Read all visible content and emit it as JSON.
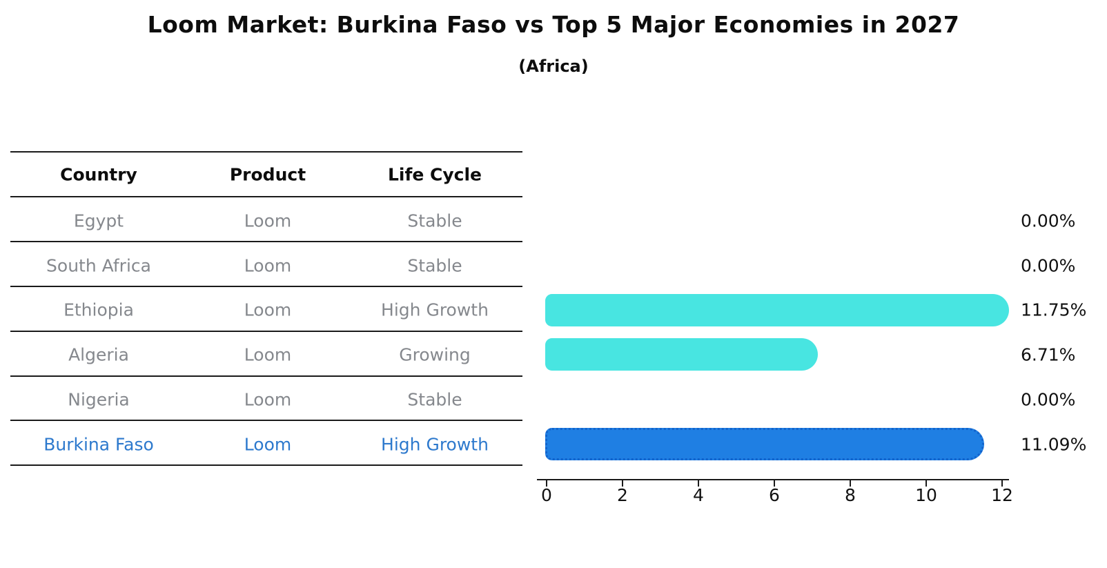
{
  "title": "Loom Market: Burkina Faso vs Top 5 Major Economies in 2027",
  "subtitle": "(Africa)",
  "table": {
    "headers": [
      "Country",
      "Product",
      "Life Cycle"
    ],
    "rows": [
      {
        "country": "Egypt",
        "product": "Loom",
        "life_cycle": "Stable",
        "value_label": "0.00%",
        "highlight": false
      },
      {
        "country": "South Africa",
        "product": "Loom",
        "life_cycle": "Stable",
        "value_label": "0.00%",
        "highlight": false
      },
      {
        "country": "Ethiopia",
        "product": "Loom",
        "life_cycle": "High Growth",
        "value_label": "11.75%",
        "highlight": false
      },
      {
        "country": "Algeria",
        "product": "Loom",
        "life_cycle": "Growing",
        "value_label": "6.71%",
        "highlight": false
      },
      {
        "country": "Nigeria",
        "product": "Loom",
        "life_cycle": "Stable",
        "value_label": "0.00%",
        "highlight": false
      },
      {
        "country": "Burkina Faso",
        "product": "Loom",
        "life_cycle": "High Growth",
        "value_label": "11.09%",
        "highlight": true
      }
    ],
    "highlight_row": "Burkina Faso"
  },
  "chart_data": {
    "type": "bar",
    "orientation": "horizontal",
    "title": "Loom Market: Burkina Faso vs Top 5 Major Economies in 2027",
    "subtitle": "(Africa)",
    "categories": [
      "Egypt",
      "South Africa",
      "Ethiopia",
      "Algeria",
      "Nigeria",
      "Burkina Faso"
    ],
    "values": [
      0.0,
      0.0,
      11.75,
      6.71,
      0.0,
      11.09
    ],
    "value_labels": [
      "0.00%",
      "0.00%",
      "11.75%",
      "6.71%",
      "0.00%",
      "11.09%"
    ],
    "unit": "percent",
    "xlim": [
      0,
      12
    ],
    "x_ticks": [
      0,
      2,
      4,
      6,
      8,
      10,
      12
    ],
    "x_tick_labels": [
      "0",
      "2",
      "4",
      "6",
      "8",
      "10",
      "12"
    ],
    "grid": false,
    "legend": false,
    "highlight_index": 5,
    "bar_color": "#48e5e1",
    "highlight_bar_color": "#1f7fe3"
  },
  "colors": {
    "bar_cyan": "#48e5e1",
    "bar_blue": "#1f7fe3",
    "bar_blue_border": "#1263cc",
    "highlight_text": "#2d79cd",
    "muted_text": "#85888d",
    "heading_text": "#0d0d0d",
    "line": "#1a1a1a",
    "background": "#ffffff"
  }
}
